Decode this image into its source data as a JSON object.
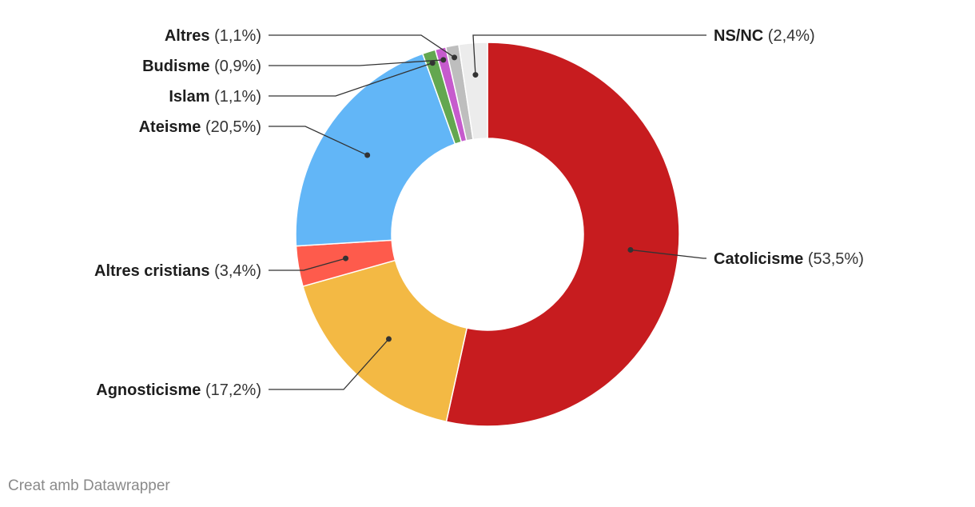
{
  "chart_data": {
    "type": "pie",
    "variant": "donut",
    "slices": [
      {
        "label": "Catolicisme",
        "value": 53.5,
        "display": "(53,5%)",
        "color": "#c71c1f"
      },
      {
        "label": "Agnosticisme",
        "value": 17.2,
        "display": "(17,2%)",
        "color": "#f3b944"
      },
      {
        "label": "Altres cristians",
        "value": 3.4,
        "display": "(3,4%)",
        "color": "#fe5b4c"
      },
      {
        "label": "Ateisme",
        "value": 20.5,
        "display": "(20,5%)",
        "color": "#62b6f7"
      },
      {
        "label": "Islam",
        "value": 1.1,
        "display": "(1,1%)",
        "color": "#63a750"
      },
      {
        "label": "Budisme",
        "value": 0.9,
        "display": "(0,9%)",
        "color": "#c65bcd"
      },
      {
        "label": "Altres",
        "value": 1.1,
        "display": "(1,1%)",
        "color": "#bebebe"
      },
      {
        "label": "NS/NC",
        "value": 2.4,
        "display": "(2,4%)",
        "color": "#ececec"
      }
    ]
  },
  "credit": "Creat amb Datawrapper"
}
